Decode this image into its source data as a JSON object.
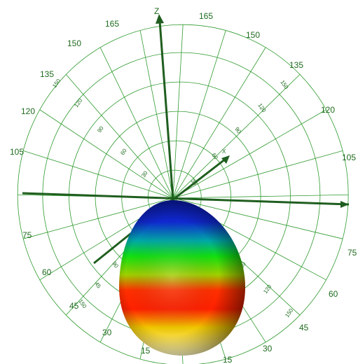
{
  "axes": {
    "z_label": "Z",
    "x_label": "X"
  },
  "elevation_labels_left": [
    "165",
    "150",
    "135",
    "120",
    "105",
    "75",
    "60",
    "45",
    "30",
    "15"
  ],
  "elevation_labels_right": [
    "165",
    "150",
    "135",
    "120",
    "105",
    "75",
    "60",
    "45",
    "30",
    "15"
  ],
  "radial_tick_labels_upper": [
    "30",
    "60",
    "90",
    "120",
    "150"
  ],
  "radial_tick_labels_lower": [
    "90",
    "120",
    "150"
  ],
  "radial_tick_labels_left_lower": [
    "90",
    "45",
    "150"
  ],
  "radial_tick_labels_right": [
    "30",
    "60",
    "90",
    "120",
    "150"
  ],
  "colors": {
    "grid": "#2f9a2f",
    "axis": "#1f5e1f",
    "label": "#1f6b1f",
    "lobe_gradient": [
      "#0a1aa0",
      "#00a0a0",
      "#10d010",
      "#c8c800",
      "#ff2000",
      "#ff6000",
      "#e8e000",
      "#ffffc0"
    ]
  }
}
